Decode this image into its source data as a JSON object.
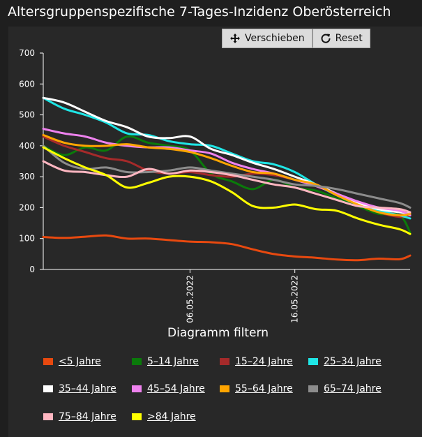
{
  "title": "Altersgruppenspezifische 7-Tages-Inzidenz Oberösterreich",
  "toolbar": {
    "pan_label": "Verschieben",
    "reset_label": "Reset",
    "pan_icon": "move-icon",
    "reset_icon": "reset-icon"
  },
  "filter_title": "Diagramm filtern",
  "chart_data": {
    "type": "line",
    "title": "Altersgruppenspezifische 7-Tages-Inzidenz Oberösterreich",
    "xlabel": "",
    "ylabel": "",
    "ylim": [
      0,
      700
    ],
    "yticks": [
      "0",
      "100",
      "200",
      "300",
      "400",
      "500",
      "600",
      "700"
    ],
    "xlim": [
      "2022-04-22",
      "2022-05-27"
    ],
    "xticks": [
      {
        "date": "2022-05-06",
        "label": "06.05.2022"
      },
      {
        "date": "2022-05-16",
        "label": "16.05.2022"
      }
    ],
    "grid": false,
    "x": [
      "2022-04-22",
      "2022-04-24",
      "2022-04-26",
      "2022-04-28",
      "2022-04-30",
      "2022-05-02",
      "2022-05-04",
      "2022-05-06",
      "2022-05-08",
      "2022-05-10",
      "2022-05-12",
      "2022-05-14",
      "2022-05-16",
      "2022-05-18",
      "2022-05-20",
      "2022-05-22",
      "2022-05-24",
      "2022-05-26",
      "2022-05-27"
    ],
    "series": [
      {
        "name": "<5 Jahre",
        "color": "#e8490f",
        "values": [
          105,
          102,
          106,
          110,
          100,
          100,
          95,
          90,
          88,
          82,
          65,
          50,
          42,
          38,
          32,
          30,
          35,
          33,
          45
        ]
      },
      {
        "name": "5–14 Jahre",
        "color": "#0a7a0a",
        "values": [
          400,
          370,
          395,
          385,
          430,
          410,
          400,
          385,
          310,
          285,
          260,
          290,
          265,
          255,
          230,
          205,
          180,
          175,
          120
        ]
      },
      {
        "name": "15–24 Jahre",
        "color": "#a52a2a",
        "values": [
          430,
          400,
          380,
          360,
          350,
          320,
          310,
          315,
          305,
          300,
          310,
          305,
          290,
          270,
          245,
          215,
          185,
          170,
          175
        ]
      },
      {
        "name": "25–34 Jahre",
        "color": "#1fe6e6",
        "values": [
          555,
          520,
          500,
          475,
          440,
          435,
          415,
          405,
          400,
          375,
          350,
          340,
          315,
          275,
          240,
          210,
          190,
          175,
          165
        ]
      },
      {
        "name": "35–44 Jahre",
        "color": "#ffffff",
        "values": [
          555,
          540,
          510,
          480,
          460,
          430,
          425,
          430,
          390,
          370,
          345,
          325,
          300,
          275,
          245,
          215,
          195,
          185,
          180
        ]
      },
      {
        "name": "45–54 Jahre",
        "color": "#ee82ee",
        "values": [
          455,
          440,
          430,
          410,
          400,
          395,
          395,
          385,
          375,
          345,
          325,
          310,
          290,
          270,
          245,
          220,
          200,
          190,
          175
        ]
      },
      {
        "name": "55–64 Jahre",
        "color": "#ffa500",
        "values": [
          435,
          410,
          400,
          400,
          405,
          395,
          390,
          380,
          360,
          335,
          315,
          310,
          290,
          275,
          240,
          210,
          185,
          175,
          180
        ]
      },
      {
        "name": "65–74 Jahre",
        "color": "#8c8c8c",
        "values": [
          400,
          345,
          325,
          330,
          315,
          315,
          320,
          330,
          320,
          310,
          300,
          290,
          275,
          270,
          260,
          245,
          230,
          215,
          200
        ]
      },
      {
        "name": "75–84 Jahre",
        "color": "#ffb6c1",
        "values": [
          350,
          320,
          315,
          305,
          300,
          325,
          310,
          320,
          315,
          305,
          290,
          275,
          265,
          245,
          225,
          205,
          200,
          195,
          185
        ]
      },
      {
        "name": ">84 Jahre",
        "color": "#ffff00",
        "values": [
          395,
          360,
          330,
          305,
          265,
          280,
          300,
          300,
          285,
          250,
          205,
          200,
          210,
          195,
          190,
          165,
          145,
          130,
          115
        ]
      }
    ]
  }
}
